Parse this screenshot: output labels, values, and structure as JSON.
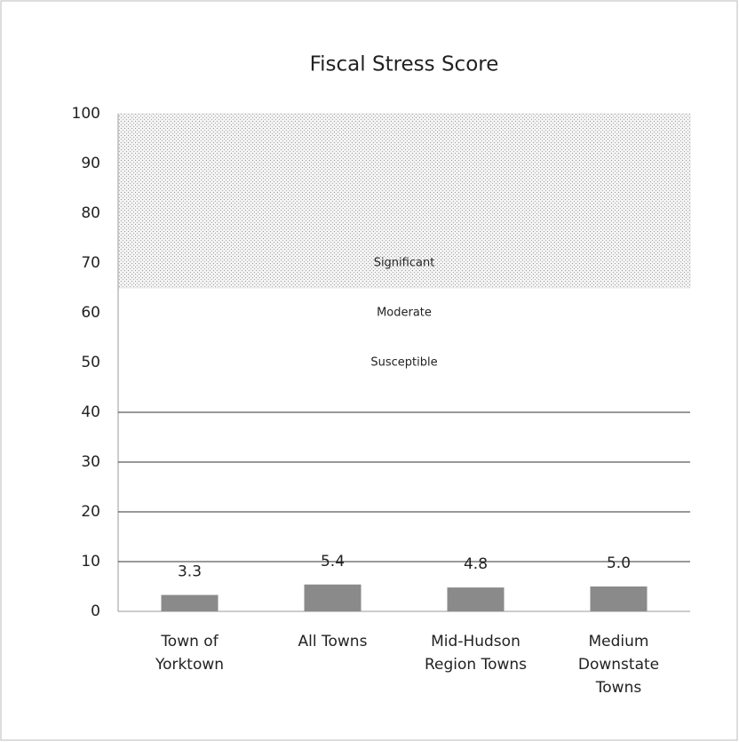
{
  "chart_data": {
    "type": "bar",
    "title": "Fiscal Stress Score",
    "categories": [
      [
        "Town of",
        "Yorktown"
      ],
      [
        "All Towns"
      ],
      [
        "Mid-Hudson",
        "Region Towns"
      ],
      [
        "Medium",
        "Downstate",
        "Towns"
      ]
    ],
    "values": [
      3.3,
      5.4,
      4.8,
      5.0
    ],
    "value_labels": [
      "3.3",
      "5.4",
      "4.8",
      "5.0"
    ],
    "color": "#8a8a8a",
    "ylim": [
      0,
      100
    ],
    "yticks": [
      0,
      10,
      20,
      30,
      40,
      50,
      60,
      70,
      80,
      90,
      100
    ],
    "reference_lines": [
      10,
      20,
      30,
      40
    ],
    "shaded_range": {
      "from": 65,
      "to": 100,
      "color": "#cfcfcf"
    },
    "annotations": [
      {
        "text": "Significant",
        "y": 70
      },
      {
        "text": "Moderate",
        "y": 60
      },
      {
        "text": "Susceptible",
        "y": 50
      }
    ]
  }
}
